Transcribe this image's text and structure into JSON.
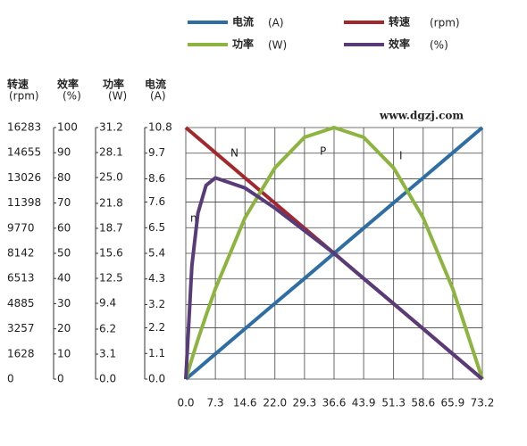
{
  "chart_data": {
    "type": "line",
    "x": [
      0,
      1.5,
      3,
      5,
      7.3,
      14.6,
      22,
      29.3,
      36.6,
      43.9,
      51.3,
      58.6,
      65.9,
      73.2
    ],
    "xlim": [
      0,
      73.2
    ],
    "xticks": [
      {
        "value": 0,
        "label": "0.0"
      },
      7.3,
      14.6,
      {
        "value": 22,
        "label": "22.0"
      },
      29.3,
      36.6,
      43.9,
      51.3,
      58.6,
      65.9,
      73.2
    ],
    "grid": true,
    "axes": [
      {
        "label": "转速",
        "unit": "(rpm)",
        "lim": [
          0,
          16283
        ],
        "ticks": [
          0,
          1628,
          3257,
          4885,
          6513,
          8142,
          9770,
          11398,
          13026,
          14655,
          16283
        ]
      },
      {
        "label": "效率",
        "unit": "(%)",
        "lim": [
          0,
          100
        ],
        "ticks": [
          0,
          10,
          20,
          30,
          40,
          50,
          60,
          70,
          80,
          90,
          100
        ]
      },
      {
        "label": "功率",
        "unit": "(W)",
        "lim": [
          0,
          31.2
        ],
        "ticks": [
          {
            "value": 0,
            "label": "0.0"
          },
          3.1,
          6.2,
          9.4,
          12.5,
          15.6,
          18.7,
          21.8,
          {
            "value": 25,
            "label": "25.0"
          },
          28.1,
          31.2
        ]
      },
      {
        "label": "电流",
        "unit": "(A)",
        "lim": [
          0,
          10.8
        ],
        "ticks": [
          {
            "value": 0,
            "label": "0.0"
          },
          1.1,
          2.2,
          3.2,
          4.3,
          5.4,
          6.5,
          7.6,
          8.6,
          9.7,
          10.8
        ]
      }
    ],
    "series": [
      {
        "name": "电流",
        "unit": "(A)",
        "color": "#2f6ea5",
        "axis": 3,
        "values": [
          0,
          0.22,
          0.44,
          0.74,
          1.08,
          2.16,
          3.25,
          4.32,
          5.4,
          6.48,
          7.57,
          8.64,
          9.72,
          10.8
        ]
      },
      {
        "name": "转速",
        "unit": "(rpm)",
        "color": "#a3282c",
        "axis": 0,
        "values": [
          16283,
          15949,
          15616,
          15171,
          14655,
          13026,
          11389,
          9765,
          8142,
          6513,
          4873,
          3257,
          1622,
          0
        ]
      },
      {
        "name": "功率",
        "unit": "(W)",
        "color": "#8cb43f",
        "axis": 2,
        "values": [
          0,
          2.5,
          4.9,
          7.9,
          11.2,
          20.0,
          26.2,
          30.0,
          31.2,
          30.0,
          26.2,
          20.0,
          11.2,
          0
        ]
      },
      {
        "name": "效率",
        "unit": "(%)",
        "color": "#5a3b79",
        "axis": 1,
        "values": [
          0,
          45,
          66,
          77,
          80,
          76,
          68,
          59,
          50,
          40,
          30,
          20,
          10,
          0
        ]
      }
    ],
    "annotations": [
      "N",
      "P",
      "I",
      "n",
      "www.dgzj.com"
    ]
  }
}
